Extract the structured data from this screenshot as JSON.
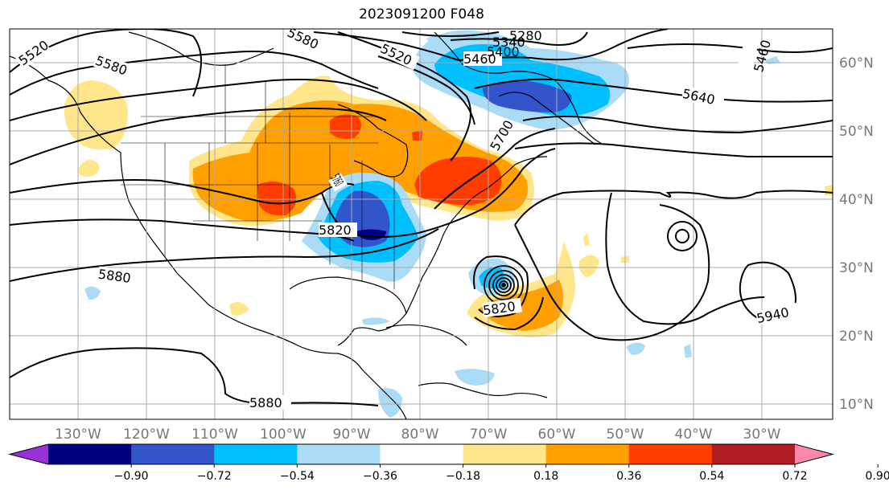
{
  "title": "2023091200 F048",
  "map": {
    "lon_labels": [
      "130°W",
      "120°W",
      "110°W",
      "100°W",
      "90°W",
      "80°W",
      "70°W",
      "60°W",
      "50°W",
      "40°W",
      "30°W"
    ],
    "lat_labels": [
      "60°N",
      "50°N",
      "40°N",
      "30°N",
      "20°N",
      "10°N"
    ],
    "contour_labels": [
      "5520",
      "5580",
      "5580",
      "5520",
      "5460",
      "5400",
      "5340",
      "5280",
      "5460",
      "5640",
      "5700",
      "5820",
      "5820",
      "5880",
      "5940",
      "5880",
      "5760"
    ]
  },
  "colorbar": {
    "ticks": [
      "−0.90",
      "−0.72",
      "−0.54",
      "−0.36",
      "−0.18",
      "0.18",
      "0.36",
      "0.54",
      "0.72",
      "0.90"
    ],
    "colors": [
      "#9b30d9",
      "#00007f",
      "#3355cc",
      "#00bfff",
      "#aadcf8",
      "#ffffff",
      "#ffe68a",
      "#ff9f00",
      "#ff3d00",
      "#b01e24",
      "#ff88aa"
    ]
  }
}
